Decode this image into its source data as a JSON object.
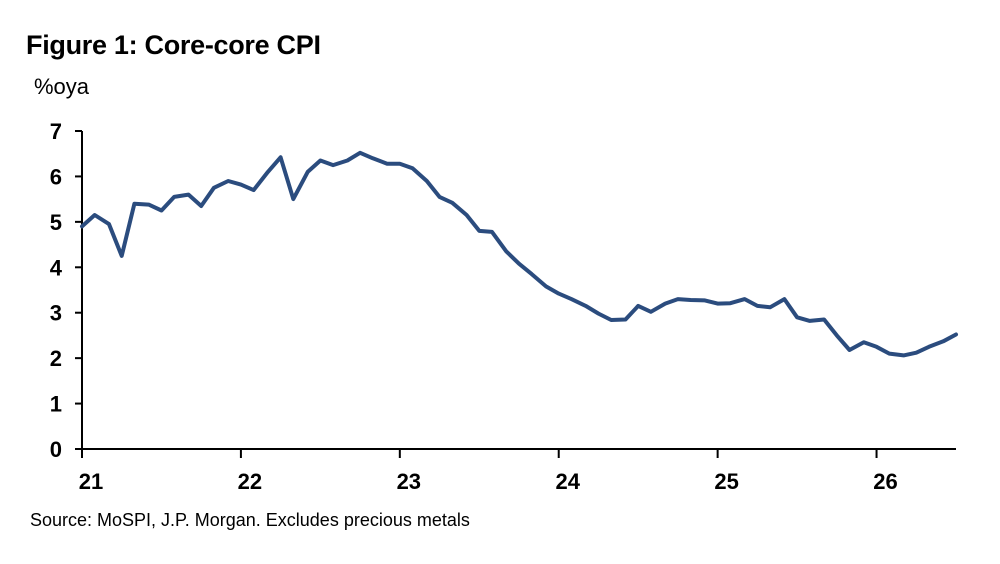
{
  "chart_data": {
    "type": "line",
    "title": "Figure 1: Core-core CPI",
    "ylabel": "%oya",
    "source": "Source: MoSPI, J.P. Morgan. Excludes precious metals",
    "ylim": [
      0,
      7
    ],
    "yticks": [
      0,
      1,
      2,
      3,
      4,
      5,
      6,
      7
    ],
    "xlim": [
      21,
      26.5
    ],
    "xticks": [
      {
        "value": 21,
        "label": "21"
      },
      {
        "value": 22,
        "label": "22"
      },
      {
        "value": 23,
        "label": "23"
      },
      {
        "value": 24,
        "label": "24"
      },
      {
        "value": 25,
        "label": "25"
      },
      {
        "value": 26,
        "label": "26"
      }
    ],
    "grid": false,
    "series": [
      {
        "color": "#2B4C7E",
        "points": [
          [
            21.0,
            4.9
          ],
          [
            21.08,
            5.15
          ],
          [
            21.17,
            4.95
          ],
          [
            21.25,
            4.25
          ],
          [
            21.33,
            5.4
          ],
          [
            21.42,
            5.38
          ],
          [
            21.5,
            5.25
          ],
          [
            21.58,
            5.55
          ],
          [
            21.67,
            5.6
          ],
          [
            21.75,
            5.35
          ],
          [
            21.83,
            5.75
          ],
          [
            21.92,
            5.9
          ],
          [
            22.0,
            5.82
          ],
          [
            22.08,
            5.7
          ],
          [
            22.17,
            6.1
          ],
          [
            22.25,
            6.42
          ],
          [
            22.33,
            5.5
          ],
          [
            22.42,
            6.1
          ],
          [
            22.5,
            6.35
          ],
          [
            22.58,
            6.25
          ],
          [
            22.67,
            6.35
          ],
          [
            22.75,
            6.52
          ],
          [
            22.83,
            6.4
          ],
          [
            22.92,
            6.28
          ],
          [
            23.0,
            6.28
          ],
          [
            23.08,
            6.18
          ],
          [
            23.17,
            5.9
          ],
          [
            23.25,
            5.55
          ],
          [
            23.33,
            5.42
          ],
          [
            23.42,
            5.15
          ],
          [
            23.5,
            4.8
          ],
          [
            23.58,
            4.78
          ],
          [
            23.67,
            4.35
          ],
          [
            23.75,
            4.08
          ],
          [
            23.83,
            3.85
          ],
          [
            23.92,
            3.58
          ],
          [
            24.0,
            3.42
          ],
          [
            24.08,
            3.3
          ],
          [
            24.17,
            3.15
          ],
          [
            24.25,
            2.98
          ],
          [
            24.33,
            2.84
          ],
          [
            24.42,
            2.85
          ],
          [
            24.5,
            3.15
          ],
          [
            24.58,
            3.02
          ],
          [
            24.67,
            3.2
          ],
          [
            24.75,
            3.3
          ],
          [
            24.83,
            3.28
          ],
          [
            24.92,
            3.27
          ],
          [
            25.0,
            3.2
          ],
          [
            25.08,
            3.21
          ],
          [
            25.17,
            3.3
          ],
          [
            25.25,
            3.15
          ],
          [
            25.33,
            3.12
          ],
          [
            25.42,
            3.3
          ],
          [
            25.5,
            2.9
          ],
          [
            25.58,
            2.82
          ],
          [
            25.67,
            2.85
          ],
          [
            25.75,
            2.5
          ],
          [
            25.83,
            2.18
          ],
          [
            25.92,
            2.35
          ],
          [
            26.0,
            2.25
          ],
          [
            26.08,
            2.1
          ],
          [
            26.17,
            2.06
          ],
          [
            26.25,
            2.12
          ],
          [
            26.33,
            2.25
          ],
          [
            26.42,
            2.37
          ],
          [
            26.5,
            2.52
          ]
        ]
      }
    ]
  }
}
